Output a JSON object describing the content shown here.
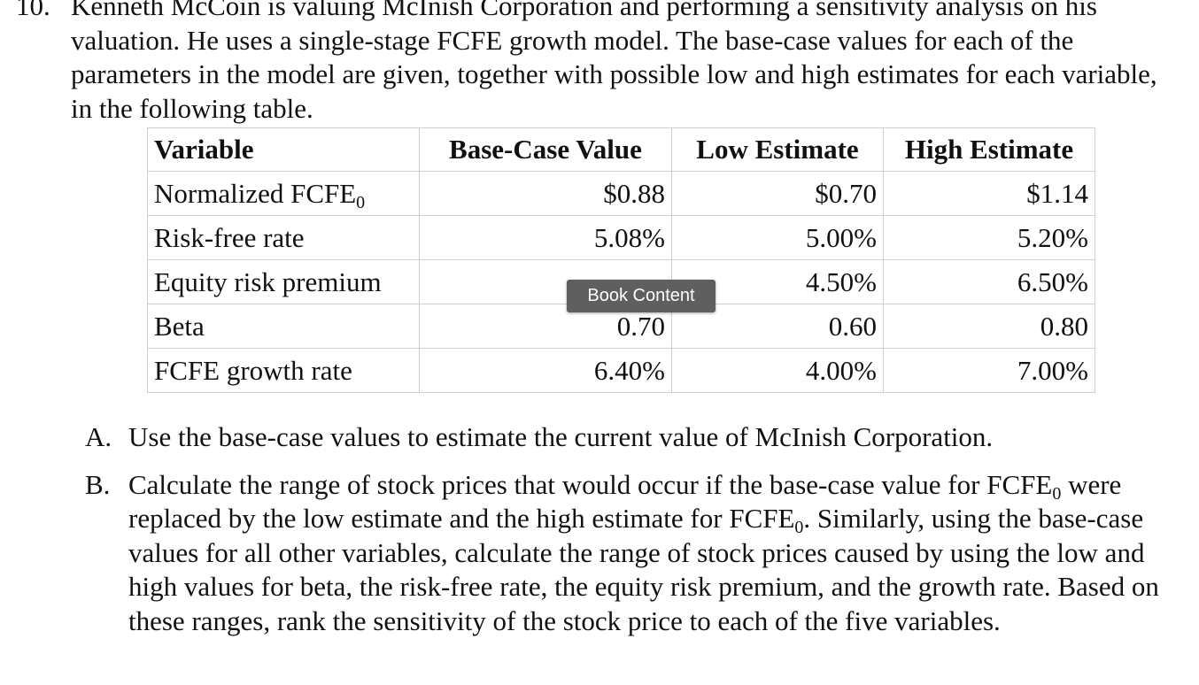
{
  "question": {
    "number": "10.",
    "text": "Kenneth McCoin is valuing McInish Corporation and performing a sensitivity analysis on his valuation. He uses a single-stage FCFE growth model. The base-case values for each of the parameters in the model are given, together with possible low and high estimates for each variable, in the following table."
  },
  "table": {
    "headers": [
      "Variable",
      "Base-Case Value",
      "Low Estimate",
      "High Estimate"
    ],
    "rows": [
      {
        "variable": "Normalized FCFE",
        "subscript": "0",
        "base": "$0.88",
        "low": "$0.70",
        "high": "$1.14"
      },
      {
        "variable": "Risk-free rate",
        "subscript": "",
        "base": "5.08%",
        "low": "5.00%",
        "high": "5.20%"
      },
      {
        "variable": "Equity risk premium",
        "subscript": "",
        "base": "",
        "low": "4.50%",
        "high": "6.50%"
      },
      {
        "variable": "Beta",
        "subscript": "",
        "base": "0.70",
        "low": "0.60",
        "high": "0.80"
      },
      {
        "variable": "FCFE growth rate",
        "subscript": "",
        "base": "6.40%",
        "low": "4.00%",
        "high": "7.00%"
      }
    ]
  },
  "tooltip": {
    "label": "Book Content"
  },
  "parts": {
    "a": {
      "label": "A.",
      "text": "Use the base-case values to estimate the current value of McInish Corporation."
    },
    "b": {
      "label": "B.",
      "text_1": "Calculate the range of stock prices that would occur if the base-case value for FCFE",
      "sub_1": "0",
      "text_2": " were replaced by the low estimate and the high estimate for FCFE",
      "sub_2": "0",
      "text_3": ". Similarly, using the base-case values for all other variables, calculate the range of stock prices caused by using the low and high values for beta, the risk-free rate, the equity risk premium, and the growth rate. Based on these ranges, rank the sensitivity of the stock price to each of the five variables."
    }
  }
}
